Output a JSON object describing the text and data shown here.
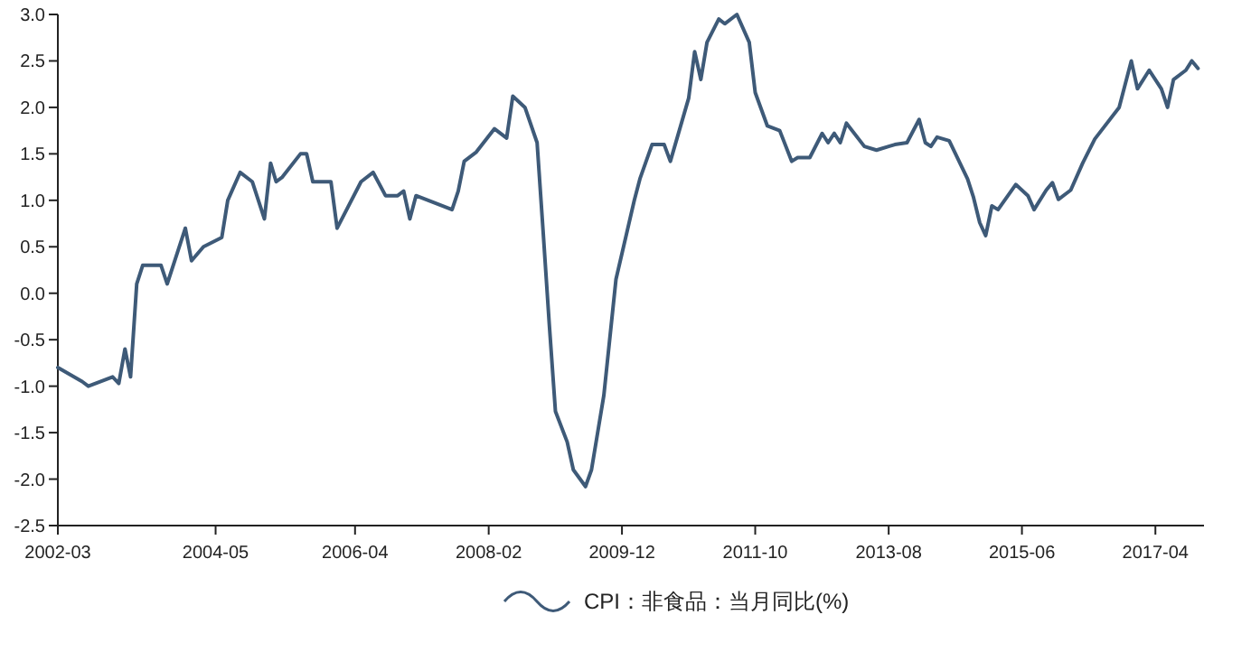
{
  "chart_data": {
    "type": "line",
    "x": [
      "2002-03",
      "2002-07",
      "2002-08",
      "2002-12",
      "2003-01",
      "2003-02",
      "2003-03",
      "2003-04",
      "2003-05",
      "2003-08",
      "2003-09",
      "2003-12",
      "2004-01",
      "2004-03",
      "2004-06",
      "2004-07",
      "2004-09",
      "2004-11",
      "2005-01",
      "2005-02",
      "2005-03",
      "2005-04",
      "2005-07",
      "2005-08",
      "2005-09",
      "2005-12",
      "2006-01",
      "2006-05",
      "2006-07",
      "2006-09",
      "2006-11",
      "2006-12",
      "2007-01",
      "2007-02",
      "2007-06",
      "2007-08",
      "2007-09",
      "2007-10",
      "2007-12",
      "2008-03",
      "2008-05",
      "2008-06",
      "2008-08",
      "2008-10",
      "2008-11",
      "2008-12",
      "2009-01",
      "2009-03",
      "2009-04",
      "2009-06",
      "2009-07",
      "2009-09",
      "2009-11",
      "2010-02",
      "2010-03",
      "2010-05",
      "2010-07",
      "2010-08",
      "2010-11",
      "2010-12",
      "2011-01",
      "2011-02",
      "2011-04",
      "2011-05",
      "2011-07",
      "2011-09",
      "2011-10",
      "2011-12",
      "2012-02",
      "2012-04",
      "2012-05",
      "2012-07",
      "2012-09",
      "2012-10",
      "2012-11",
      "2012-12",
      "2013-01",
      "2013-04",
      "2013-06",
      "2013-08",
      "2013-09",
      "2013-11",
      "2014-01",
      "2014-02",
      "2014-03",
      "2014-04",
      "2014-06",
      "2014-09",
      "2014-10",
      "2014-11",
      "2014-12",
      "2015-01",
      "2015-02",
      "2015-05",
      "2015-07",
      "2015-08",
      "2015-10",
      "2015-11",
      "2015-12",
      "2016-02",
      "2016-04",
      "2016-06",
      "2016-10",
      "2016-12",
      "2017-01",
      "2017-03",
      "2017-05",
      "2017-06",
      "2017-07",
      "2017-09",
      "2017-10",
      "2017-11"
    ],
    "series": [
      {
        "name": "CPI：非食品：当月同比(%)",
        "color": "#3e5a78",
        "values": [
          -0.8,
          -0.95,
          -1.0,
          -0.9,
          -0.97,
          -0.6,
          -0.9,
          0.1,
          0.3,
          0.3,
          0.1,
          0.7,
          0.35,
          0.5,
          0.6,
          1.0,
          1.3,
          1.2,
          0.8,
          1.4,
          1.2,
          1.25,
          1.5,
          1.5,
          1.2,
          1.2,
          0.7,
          1.2,
          1.3,
          1.05,
          1.05,
          1.1,
          0.8,
          1.05,
          0.95,
          0.9,
          1.1,
          1.42,
          1.52,
          1.77,
          1.67,
          2.12,
          2.0,
          1.62,
          0.64,
          -0.33,
          -1.27,
          -1.6,
          -1.9,
          -2.08,
          -1.9,
          -1.1,
          0.15,
          1.0,
          1.23,
          1.6,
          1.6,
          1.42,
          2.1,
          2.6,
          2.3,
          2.7,
          2.95,
          2.9,
          3.0,
          2.7,
          2.16,
          1.8,
          1.75,
          1.42,
          1.46,
          1.46,
          1.72,
          1.62,
          1.72,
          1.62,
          1.83,
          1.58,
          1.54,
          1.58,
          1.6,
          1.62,
          1.87,
          1.62,
          1.58,
          1.68,
          1.64,
          1.23,
          1.03,
          0.76,
          0.62,
          0.94,
          0.9,
          1.17,
          1.05,
          0.9,
          1.11,
          1.19,
          1.01,
          1.11,
          1.4,
          1.66,
          2.0,
          2.5,
          2.2,
          2.4,
          2.2,
          2.0,
          2.3,
          2.4,
          2.5,
          2.42
        ]
      }
    ],
    "xlim": [
      "2002-03",
      "2017-12"
    ],
    "xticks": [
      {
        "value": "2002-03",
        "label": "2002-03"
      },
      {
        "value": "2004-05",
        "label": "2004-05"
      },
      {
        "value": "2006-04",
        "label": "2006-04"
      },
      {
        "value": "2008-02",
        "label": "2008-02"
      },
      {
        "value": "2009-12",
        "label": "2009-12"
      },
      {
        "value": "2011-10",
        "label": "2011-10"
      },
      {
        "value": "2013-08",
        "label": "2013-08"
      },
      {
        "value": "2015-06",
        "label": "2015-06"
      },
      {
        "value": "2017-04",
        "label": "2017-04"
      }
    ],
    "ylim": [
      -2.5,
      3.0
    ],
    "yticks": [
      {
        "value": -2.5,
        "label": "-2.5"
      },
      {
        "value": -2.0,
        "label": "-2.0"
      },
      {
        "value": -1.5,
        "label": "-1.5"
      },
      {
        "value": -1.0,
        "label": "-1.0"
      },
      {
        "value": -0.5,
        "label": "-0.5"
      },
      {
        "value": 0,
        "label": "0.0"
      },
      {
        "value": 0.5,
        "label": "0.5"
      },
      {
        "value": 1.0,
        "label": "1.0"
      },
      {
        "value": 1.5,
        "label": "1.5"
      },
      {
        "value": 2.0,
        "label": "2.0"
      },
      {
        "value": 2.5,
        "label": "2.5"
      },
      {
        "value": 3.0,
        "label": "3.0"
      }
    ],
    "grid": false,
    "legend": "bottom",
    "marker": "none",
    "line_style": "solid"
  }
}
